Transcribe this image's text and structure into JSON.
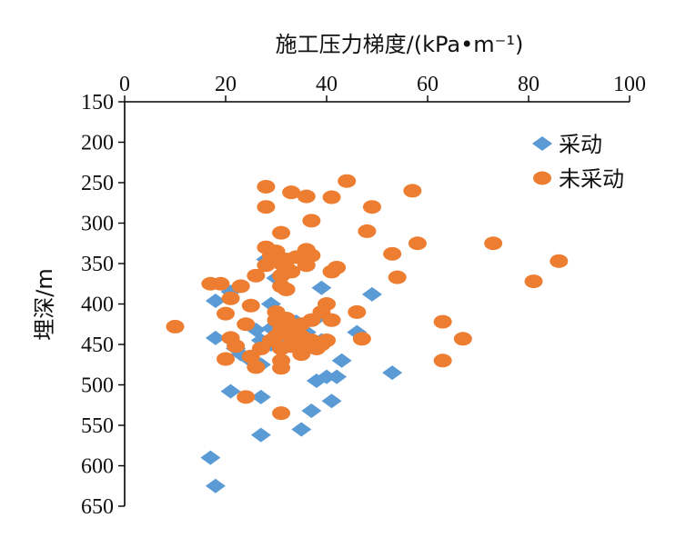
{
  "chart_data": {
    "type": "scatter",
    "title": "",
    "xlabel": "施工压力梯度/(kPa•m⁻¹)",
    "ylabel": "埋深/m",
    "xlim": [
      0,
      100
    ],
    "ylim": [
      150,
      650
    ],
    "y_inverted": true,
    "x_axis_position": "top",
    "x_ticks": [
      0,
      20,
      40,
      60,
      80,
      100
    ],
    "y_ticks": [
      150,
      200,
      250,
      300,
      350,
      400,
      450,
      500,
      550,
      600,
      650
    ],
    "grid": false,
    "legend_position": "top-right",
    "series": [
      {
        "name": "采动",
        "marker": "diamond",
        "color": "#5B9BD5",
        "points": [
          [
            17,
            590
          ],
          [
            18,
            625
          ],
          [
            21,
            508
          ],
          [
            27,
            515
          ],
          [
            27,
            562
          ],
          [
            35,
            555
          ],
          [
            38,
            495
          ],
          [
            40,
            490
          ],
          [
            41,
            520
          ],
          [
            37,
            532
          ],
          [
            42,
            490
          ],
          [
            53,
            485
          ],
          [
            43,
            470
          ],
          [
            46,
            435
          ],
          [
            49,
            388
          ],
          [
            39,
            380
          ],
          [
            38,
            418
          ],
          [
            33,
            420
          ],
          [
            29,
            400
          ],
          [
            30,
            368
          ],
          [
            28,
            345
          ],
          [
            18,
            396
          ],
          [
            21,
            385
          ],
          [
            18,
            442
          ],
          [
            23,
            462
          ],
          [
            25,
            470
          ],
          [
            27,
            475
          ],
          [
            27,
            445
          ],
          [
            29,
            450
          ],
          [
            32,
            445
          ],
          [
            36,
            455
          ],
          [
            36,
            435
          ],
          [
            29,
            430
          ],
          [
            26,
            432
          ],
          [
            31,
            428
          ],
          [
            34,
            422
          ],
          [
            39,
            445
          ],
          [
            22,
            455
          ]
        ]
      },
      {
        "name": "未采动",
        "marker": "circle",
        "color": "#ED7D31",
        "points": [
          [
            10,
            428
          ],
          [
            17,
            375
          ],
          [
            19,
            375
          ],
          [
            20,
            412
          ],
          [
            20,
            468
          ],
          [
            21,
            393
          ],
          [
            21,
            442
          ],
          [
            22,
            452
          ],
          [
            23,
            378
          ],
          [
            24,
            425
          ],
          [
            25,
            465
          ],
          [
            25,
            402
          ],
          [
            26,
            478
          ],
          [
            27,
            455
          ],
          [
            26,
            365
          ],
          [
            28,
            352
          ],
          [
            28,
            330
          ],
          [
            29,
            340
          ],
          [
            30,
            335
          ],
          [
            30,
            410
          ],
          [
            31,
            350
          ],
          [
            31,
            365
          ],
          [
            31,
            378
          ],
          [
            31,
            470
          ],
          [
            32,
            345
          ],
          [
            32,
            355
          ],
          [
            33,
            360
          ],
          [
            34,
            342
          ],
          [
            30,
            420
          ],
          [
            31,
            425
          ],
          [
            31,
            432
          ],
          [
            32,
            435
          ],
          [
            33,
            428
          ],
          [
            33,
            440
          ],
          [
            32,
            418
          ],
          [
            30,
            440
          ],
          [
            29,
            445
          ],
          [
            31,
            455
          ],
          [
            33,
            452
          ],
          [
            35,
            440
          ],
          [
            35,
            462
          ],
          [
            36,
            452
          ],
          [
            37,
            445
          ],
          [
            38,
            455
          ],
          [
            39,
            450
          ],
          [
            35,
            425
          ],
          [
            37,
            420
          ],
          [
            39,
            410
          ],
          [
            40,
            400
          ],
          [
            41,
            420
          ],
          [
            40,
            445
          ],
          [
            36,
            352
          ],
          [
            37,
            340
          ],
          [
            41,
            360
          ],
          [
            42,
            355
          ],
          [
            46,
            410
          ],
          [
            47,
            443
          ],
          [
            48,
            310
          ],
          [
            49,
            280
          ],
          [
            53,
            338
          ],
          [
            54,
            367
          ],
          [
            57,
            260
          ],
          [
            58,
            325
          ],
          [
            63,
            422
          ],
          [
            63,
            470
          ],
          [
            67,
            443
          ],
          [
            73,
            325
          ],
          [
            81,
            372
          ],
          [
            86,
            347
          ],
          [
            44,
            248
          ],
          [
            33,
            262
          ],
          [
            36,
            267
          ],
          [
            41,
            268
          ],
          [
            28,
            255
          ],
          [
            28,
            280
          ],
          [
            31,
            312
          ],
          [
            37,
            297
          ],
          [
            32,
            382
          ],
          [
            31,
            479
          ],
          [
            31,
            535
          ],
          [
            24,
            515
          ],
          [
            36,
            333
          ],
          [
            33,
            450
          ]
        ]
      }
    ]
  }
}
